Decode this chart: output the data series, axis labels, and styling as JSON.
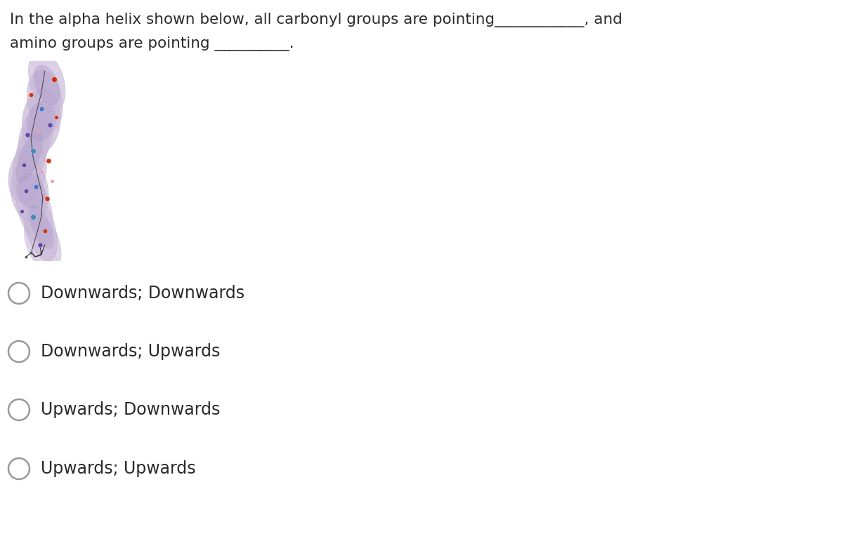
{
  "title_line1": "In the alpha helix shown below, all carbonyl groups are pointing____________, and",
  "title_line2": "amino groups are pointing __________.",
  "choices": [
    "Downwards; Downwards",
    "Downwards; Upwards",
    "Upwards; Downwards",
    "Upwards; Upwards"
  ],
  "background_color": "#ffffff",
  "text_color": "#2a2a2a",
  "font_size_question": 15.5,
  "font_size_choices": 17,
  "circle_color": "#999999",
  "helix_ribbon_color": "#c8b8d8",
  "helix_ribbon_edge": "#a898b8"
}
